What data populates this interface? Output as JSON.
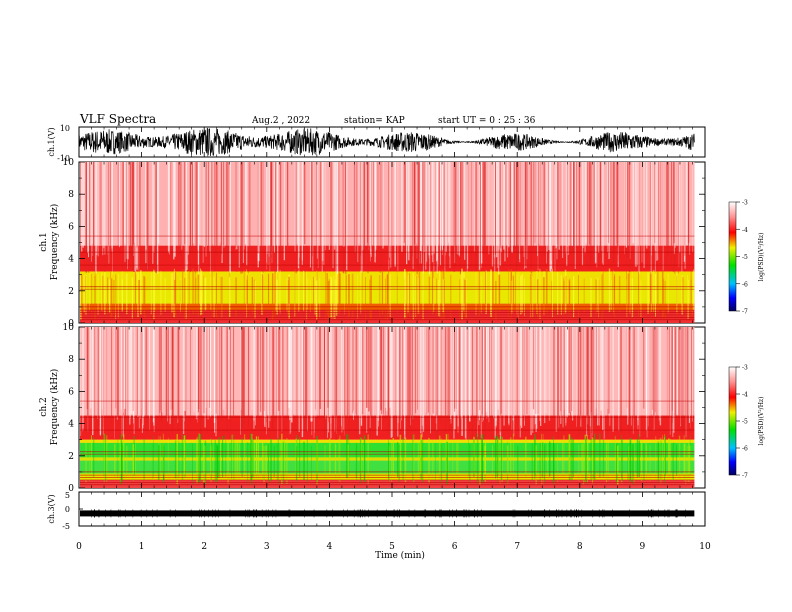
{
  "header": {
    "title": "VLF Spectra",
    "date": "Aug.2  , 2022",
    "station": "station= KAP",
    "start": "start  UT  =   0  : 25 : 36"
  },
  "colors": {
    "spec_low": "#0000b0",
    "spec_green": "#00d000",
    "spec_yellow": "#f0f000",
    "spec_red": "#e00000",
    "spec_high": "#ffffff"
  },
  "chart_data": [
    {
      "type": "line",
      "name": "ch1-waveform",
      "ylabel": "ch.1(V)",
      "ylim": [
        -10,
        10
      ],
      "y_ticks": [
        "10",
        "-10"
      ],
      "x_range_min": [
        0,
        9.83
      ]
    },
    {
      "type": "heatmap",
      "name": "ch1-spectrogram",
      "ylabel": "ch.1\nFrequency (kHz)",
      "ylim": [
        0,
        10
      ],
      "y_ticks": [
        "0",
        "2",
        "4",
        "6",
        "8",
        "10"
      ],
      "x_range_min": [
        0,
        9.83
      ],
      "colorbar": {
        "label": "log(PSD)(V²/Hz)",
        "ticks": [
          "-3",
          "-4",
          "-5",
          "-6",
          "-7"
        ],
        "range": [
          -7,
          -3
        ]
      }
    },
    {
      "type": "heatmap",
      "name": "ch2-spectrogram",
      "ylabel": "ch.2\nFrequency (kHz)",
      "ylim": [
        0,
        10
      ],
      "y_ticks": [
        "0",
        "2",
        "4",
        "6",
        "8",
        "10"
      ],
      "x_range_min": [
        0,
        9.83
      ],
      "colorbar": {
        "label": "log(PSD)(V²/Hz)",
        "ticks": [
          "-3",
          "-4",
          "-5",
          "-6",
          "-7"
        ],
        "range": [
          -7,
          -3
        ]
      }
    },
    {
      "type": "line",
      "name": "ch3-waveform",
      "ylabel": "ch.3(V)",
      "ylim": [
        -5,
        5
      ],
      "y_ticks": [
        "5",
        "0",
        "-5"
      ],
      "x_range_min": [
        0,
        9.83
      ],
      "level_v": -1.3
    }
  ],
  "xaxis": {
    "label": "Time  (min)",
    "ticks": [
      "0",
      "1",
      "2",
      "3",
      "4",
      "5",
      "6",
      "7",
      "8",
      "9",
      "10"
    ],
    "range": [
      0,
      10
    ]
  }
}
